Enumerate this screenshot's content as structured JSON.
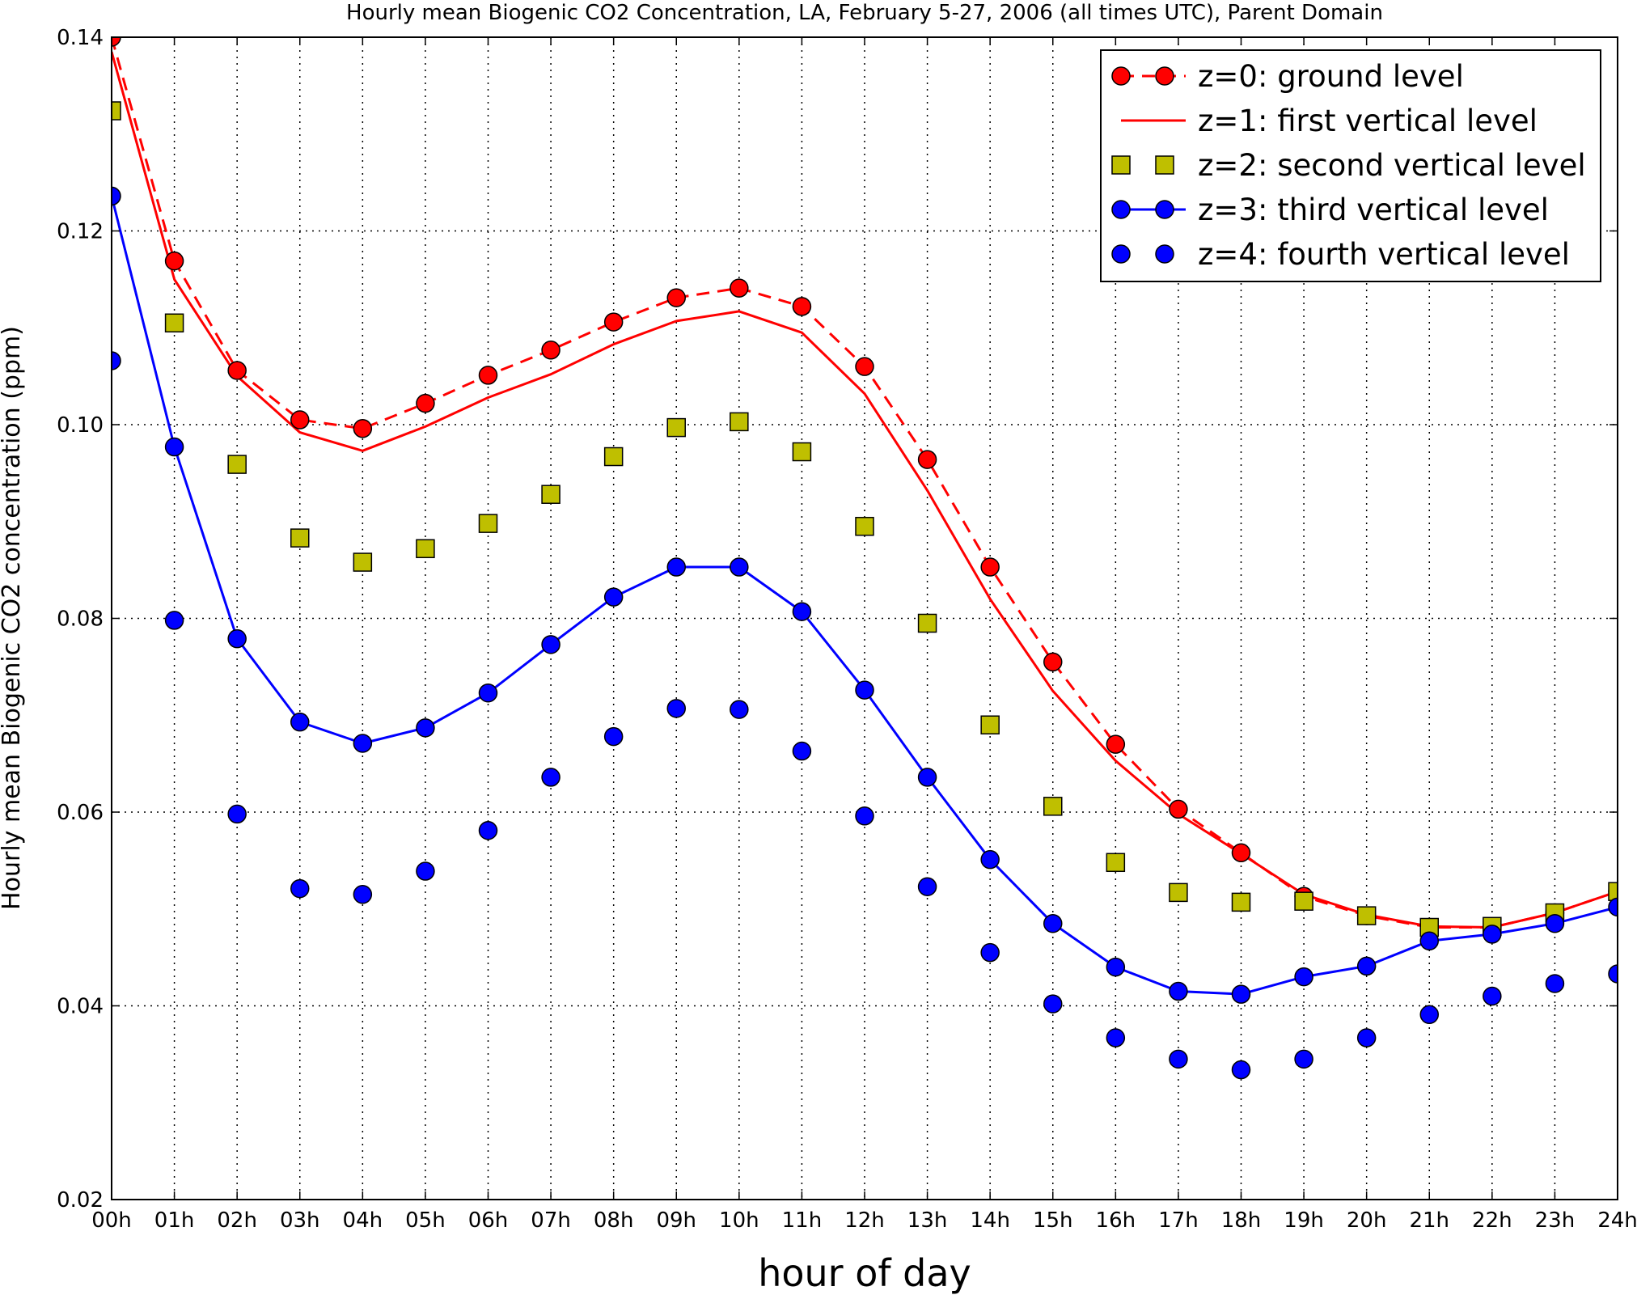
{
  "chart_data": {
    "type": "line",
    "title": "Hourly mean Biogenic CO2 Concentration, LA, February 5-27, 2006 (all times UTC), Parent Domain",
    "xlabel": "hour of day",
    "ylabel": "Hourly mean Biogenic CO2 concentration (ppm)",
    "xlim": [
      0,
      24
    ],
    "ylim": [
      0.02,
      0.14
    ],
    "grid": true,
    "legend_position": "top-right",
    "x_ticks": [
      "00h",
      "01h",
      "02h",
      "03h",
      "04h",
      "05h",
      "06h",
      "07h",
      "08h",
      "09h",
      "10h",
      "11h",
      "12h",
      "13h",
      "14h",
      "15h",
      "16h",
      "17h",
      "18h",
      "19h",
      "20h",
      "21h",
      "22h",
      "23h",
      "24h"
    ],
    "y_ticks": [
      "0.02",
      "0.04",
      "0.06",
      "0.08",
      "0.10",
      "0.12",
      "0.14"
    ],
    "y_tick_values": [
      0.02,
      0.04,
      0.06,
      0.08,
      0.1,
      0.12,
      0.14
    ],
    "x": [
      0,
      1,
      2,
      3,
      4,
      5,
      6,
      7,
      8,
      9,
      10,
      11,
      12,
      13,
      14,
      15,
      16,
      17,
      18,
      19,
      20,
      21,
      22,
      23,
      24
    ],
    "series": [
      {
        "name": "z=0: ground level",
        "style": "dashed-line-circle",
        "color": "#ff0000",
        "values": [
          0.14,
          0.1169,
          0.1056,
          0.1005,
          0.0996,
          0.1022,
          0.1051,
          0.1077,
          0.1106,
          0.1131,
          0.1141,
          0.1122,
          0.106,
          0.0964,
          0.0853,
          0.0755,
          0.067,
          0.0603,
          0.0558,
          0.0513,
          0.0493,
          0.0481,
          0.0481,
          0.0496,
          0.0518
        ]
      },
      {
        "name": "z=1: first vertical level",
        "style": "solid-line",
        "color": "#ff0000",
        "values": [
          0.1385,
          0.115,
          0.105,
          0.0992,
          0.0973,
          0.0998,
          0.1028,
          0.1052,
          0.1083,
          0.1107,
          0.1117,
          0.1095,
          0.1032,
          0.0932,
          0.082,
          0.0725,
          0.0653,
          0.0598,
          0.0557,
          0.0515,
          0.0494,
          0.0482,
          0.0481,
          0.0496,
          0.0518
        ]
      },
      {
        "name": "z=2: second vertical level",
        "style": "square-markers",
        "color": "#bfbf00",
        "values": [
          0.1324,
          0.1105,
          0.0959,
          0.0883,
          0.0858,
          0.0872,
          0.0898,
          0.0928,
          0.0967,
          0.0997,
          0.1003,
          0.0972,
          0.0895,
          0.0795,
          0.069,
          0.0606,
          0.0548,
          0.0517,
          0.0507,
          0.0508,
          0.0493,
          0.0481,
          0.0482,
          0.0496,
          0.0518
        ]
      },
      {
        "name": "z=3: third vertical level",
        "style": "solid-line-circle",
        "color": "#0000ff",
        "values": [
          0.1236,
          0.0977,
          0.0779,
          0.0693,
          0.0671,
          0.0687,
          0.0723,
          0.0773,
          0.0822,
          0.0853,
          0.0853,
          0.0807,
          0.0726,
          0.0636,
          0.0551,
          0.0485,
          0.044,
          0.0415,
          0.0412,
          0.043,
          0.0441,
          0.0467,
          0.0474,
          0.0485,
          0.0502
        ]
      },
      {
        "name": "z=4: fourth vertical level",
        "style": "circle-markers",
        "color": "#0000ff",
        "values": [
          0.1066,
          0.0798,
          0.0598,
          0.0521,
          0.0515,
          0.0539,
          0.0581,
          0.0636,
          0.0678,
          0.0707,
          0.0706,
          0.0663,
          0.0596,
          0.0523,
          0.0455,
          0.0402,
          0.0367,
          0.0345,
          0.0334,
          0.0345,
          0.0367,
          0.0391,
          0.041,
          0.0423,
          0.0433
        ]
      }
    ]
  }
}
